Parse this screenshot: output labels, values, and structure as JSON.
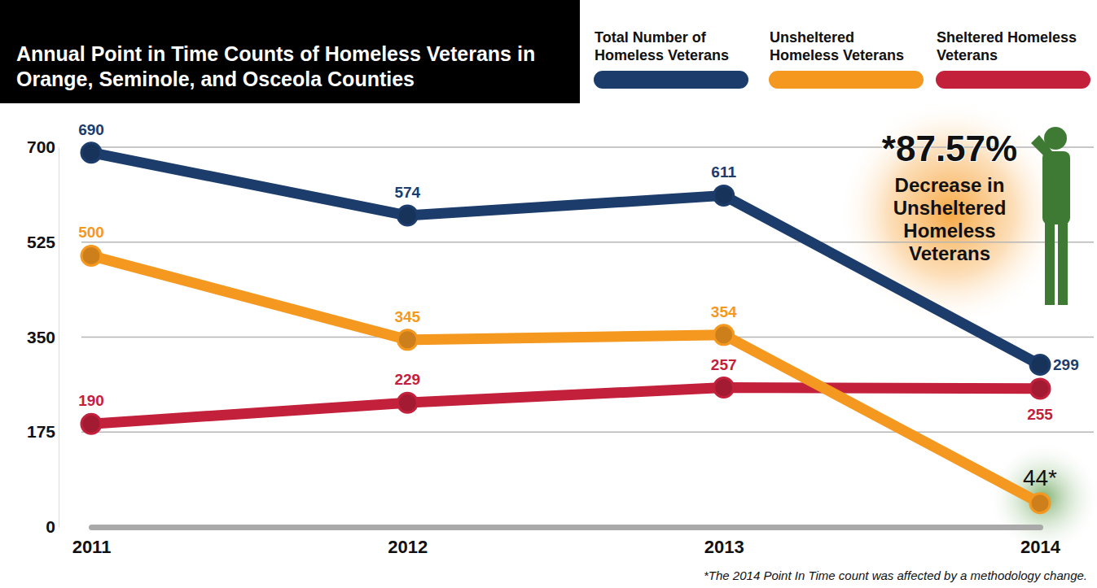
{
  "chart_data": {
    "type": "line",
    "title": "Annual Point in Time Counts of Homeless Veterans in Orange, Seminole, and Osceola Counties",
    "categories": [
      "2011",
      "2012",
      "2013",
      "2014"
    ],
    "series": [
      {
        "name": "Total Number of Homeless Veterans",
        "color": "#1c3d6b",
        "values": [
          690,
          574,
          611,
          299
        ]
      },
      {
        "name": "Unsheltered Homeless Veterans",
        "color": "#f4981f",
        "values": [
          500,
          345,
          354,
          44
        ],
        "value_labels": [
          "500",
          "345",
          "354",
          "44*"
        ]
      },
      {
        "name": "Sheltered Homeless Veterans",
        "color": "#c3203c",
        "values": [
          190,
          229,
          257,
          255
        ]
      }
    ],
    "ylim": [
      0,
      700
    ],
    "yticks": [
      0,
      175,
      350,
      525,
      700
    ],
    "grid": true,
    "legend": "top",
    "data_labels": true,
    "marker": "circle",
    "annotations": [
      "*87.57%",
      "Decrease in Unsheltered Homeless Veterans"
    ],
    "footnote": "*The 2014 Point In Time count was affected by a methodology change."
  }
}
